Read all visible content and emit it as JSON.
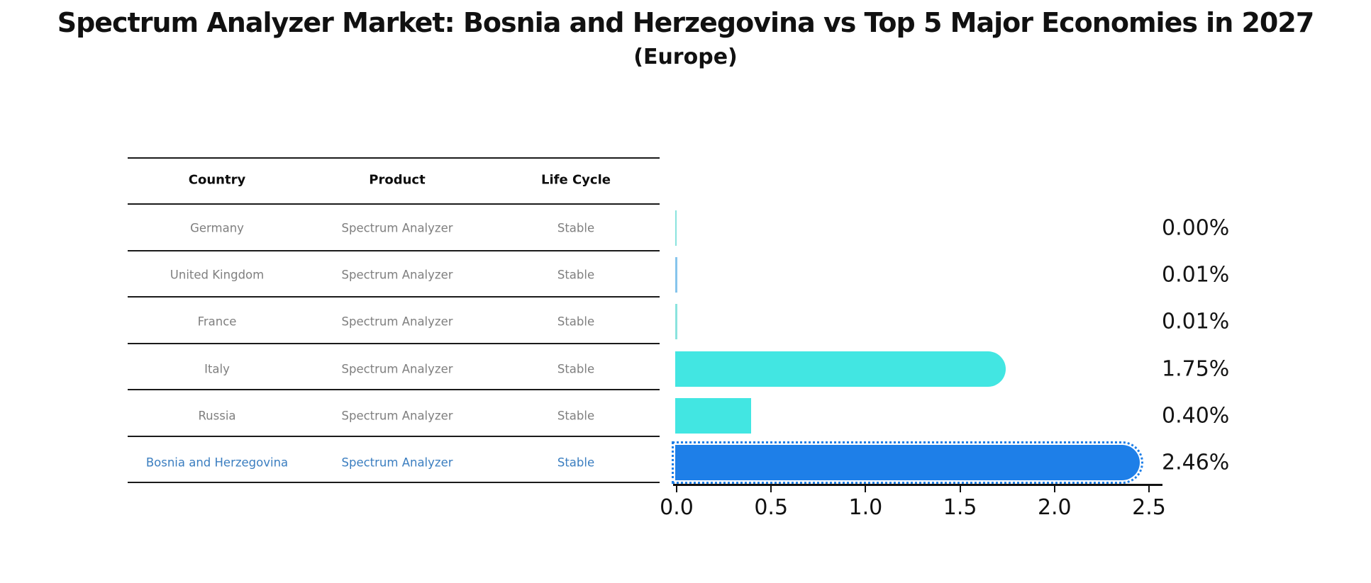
{
  "title": "Spectrum Analyzer Market: Bosnia and Herzegovina vs Top 5 Major Economies in 2027",
  "subtitle": "(Europe)",
  "table": {
    "headers": [
      "Country",
      "Product",
      "Life Cycle"
    ],
    "rows": [
      {
        "country": "Germany",
        "product": "Spectrum Analyzer",
        "life_cycle": "Stable",
        "highlight": false
      },
      {
        "country": "United Kingdom",
        "product": "Spectrum Analyzer",
        "life_cycle": "Stable",
        "highlight": false
      },
      {
        "country": "France",
        "product": "Spectrum Analyzer",
        "life_cycle": "Stable",
        "highlight": false
      },
      {
        "country": "Italy",
        "product": "Spectrum Analyzer",
        "life_cycle": "Stable",
        "highlight": false
      },
      {
        "country": "Russia",
        "product": "Spectrum Analyzer",
        "life_cycle": "Stable",
        "highlight": false
      },
      {
        "country": "Bosnia and Herzegovina",
        "product": "Spectrum Analyzer",
        "life_cycle": "Stable",
        "highlight": true
      }
    ]
  },
  "chart_data": {
    "type": "bar",
    "orientation": "horizontal",
    "title": "Spectrum Analyzer Market: Bosnia and Herzegovina vs Top 5 Major Economies in 2027 (Europe)",
    "categories": [
      "Germany",
      "United Kingdom",
      "France",
      "Italy",
      "Russia",
      "Bosnia and Herzegovina"
    ],
    "values": [
      0.0,
      0.01,
      0.01,
      1.75,
      0.4,
      2.46
    ],
    "value_labels": [
      "0.00%",
      "0.01%",
      "0.01%",
      "1.75%",
      "0.40%",
      "2.46%"
    ],
    "x_ticks": [
      0.0,
      0.5,
      1.0,
      1.5,
      2.0,
      2.5
    ],
    "x_tick_labels": [
      "0.0",
      "0.5",
      "1.0",
      "1.5",
      "2.0",
      "2.5"
    ],
    "xlim": [
      0,
      2.6
    ],
    "grid": false,
    "legend": "none",
    "highlight_category": "Bosnia and Herzegovina",
    "bar_colors": [
      "#8ae3de",
      "#86c5ec",
      "#8ae3de",
      "#42e6e2",
      "#42e6e2",
      "#1e7fe8"
    ],
    "rounded_end": [
      false,
      false,
      false,
      true,
      false,
      true
    ],
    "dotted_outline": [
      false,
      false,
      false,
      false,
      false,
      true
    ]
  },
  "colors": {
    "primary_cyan": "#42e6e2",
    "highlight_blue": "#1e7fe8",
    "highlight_text": "#3b7ec0",
    "cell_text": "#7f7f7f",
    "heading_text": "#111111",
    "axis": "#111111",
    "divider": "#1a1a1a",
    "background": "#ffffff"
  }
}
